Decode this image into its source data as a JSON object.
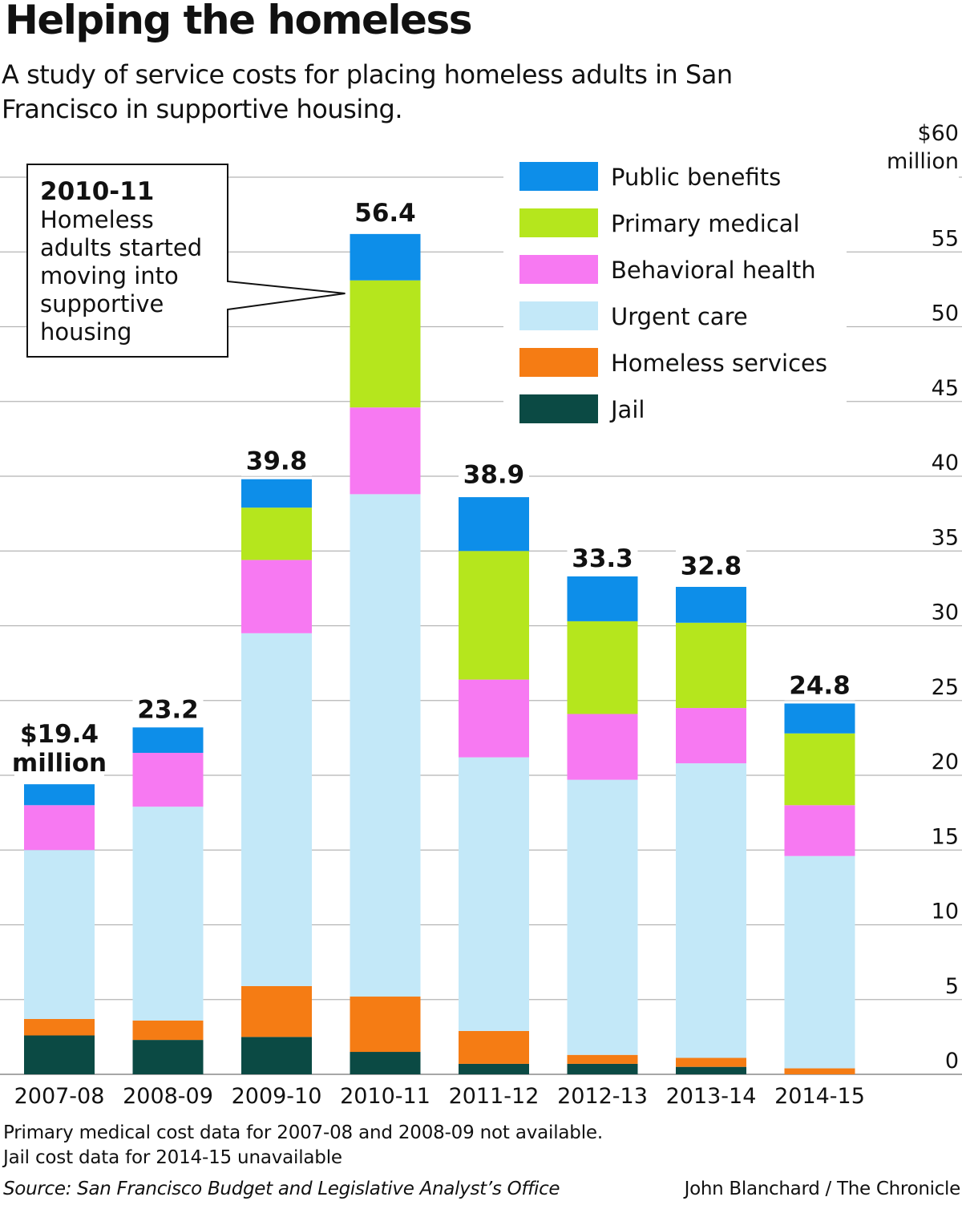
{
  "title": "Helping the homeless",
  "subtitle": "A study of service costs for placing homeless adults in San Francisco in supportive housing.",
  "notes": [
    "Primary medical cost data for 2007-08 and 2008-09 not available.",
    "Jail cost data for 2014-15 unavailable"
  ],
  "source": "Source: San Francisco Budget and Legislative Analyst’s Office",
  "credit": "John Blanchard / The Chronicle",
  "annotation": {
    "heading": "2010-11",
    "lines": [
      "Homeless",
      "adults started",
      "moving into",
      "supportive",
      "housing"
    ],
    "target": "2010-11"
  },
  "chart_data": {
    "type": "bar",
    "stacked": true,
    "categories": [
      "2007-08",
      "2008-09",
      "2009-10",
      "2010-11",
      "2011-12",
      "2012-13",
      "2013-14",
      "2014-15"
    ],
    "series": [
      {
        "name": "Jail",
        "color": "#0b4a44",
        "values": [
          2.6,
          2.3,
          2.5,
          1.5,
          0.7,
          0.7,
          0.5,
          0
        ]
      },
      {
        "name": "Homeless services",
        "color": "#f57c14",
        "values": [
          1.1,
          1.3,
          3.4,
          3.7,
          2.2,
          0.6,
          0.6,
          0.4
        ]
      },
      {
        "name": "Urgent care",
        "color": "#c3e8f8",
        "values": [
          11.3,
          14.3,
          23.6,
          33.6,
          18.3,
          18.4,
          19.7,
          14.2
        ]
      },
      {
        "name": "Behavioral health",
        "color": "#f779f2",
        "values": [
          3.0,
          3.6,
          4.9,
          5.8,
          5.2,
          4.4,
          3.7,
          3.4
        ]
      },
      {
        "name": "Primary medical",
        "color": "#b5e61d",
        "values": [
          0,
          0,
          3.5,
          8.5,
          8.6,
          6.2,
          5.7,
          4.8
        ]
      },
      {
        "name": "Public benefits",
        "color": "#0d8ee9",
        "values": [
          1.4,
          1.7,
          1.9,
          3.1,
          3.6,
          3.0,
          2.4,
          2.0
        ]
      }
    ],
    "totals": [
      19.4,
      23.2,
      39.8,
      56.4,
      38.9,
      33.3,
      32.8,
      24.8
    ],
    "total_labels": [
      "$19.4",
      "23.2",
      "39.8",
      "56.4",
      "38.9",
      "33.3",
      "32.8",
      "24.8"
    ],
    "first_total_unit": "million",
    "legend_order": [
      "Public benefits",
      "Primary medical",
      "Behavioral health",
      "Urgent care",
      "Homeless services",
      "Jail"
    ],
    "legend_position": "top-right",
    "y_ticks": [
      0,
      5,
      10,
      15,
      20,
      25,
      30,
      35,
      40,
      45,
      50,
      55,
      60
    ],
    "y_tick_labels": [
      "0",
      "5",
      "10",
      "15",
      "20",
      "25",
      "30",
      "35",
      "40",
      "45",
      "50",
      "55",
      "$60"
    ],
    "y_top_unit": "million",
    "ylim": [
      0,
      60
    ],
    "y_axis_position": "right",
    "grid": true
  }
}
